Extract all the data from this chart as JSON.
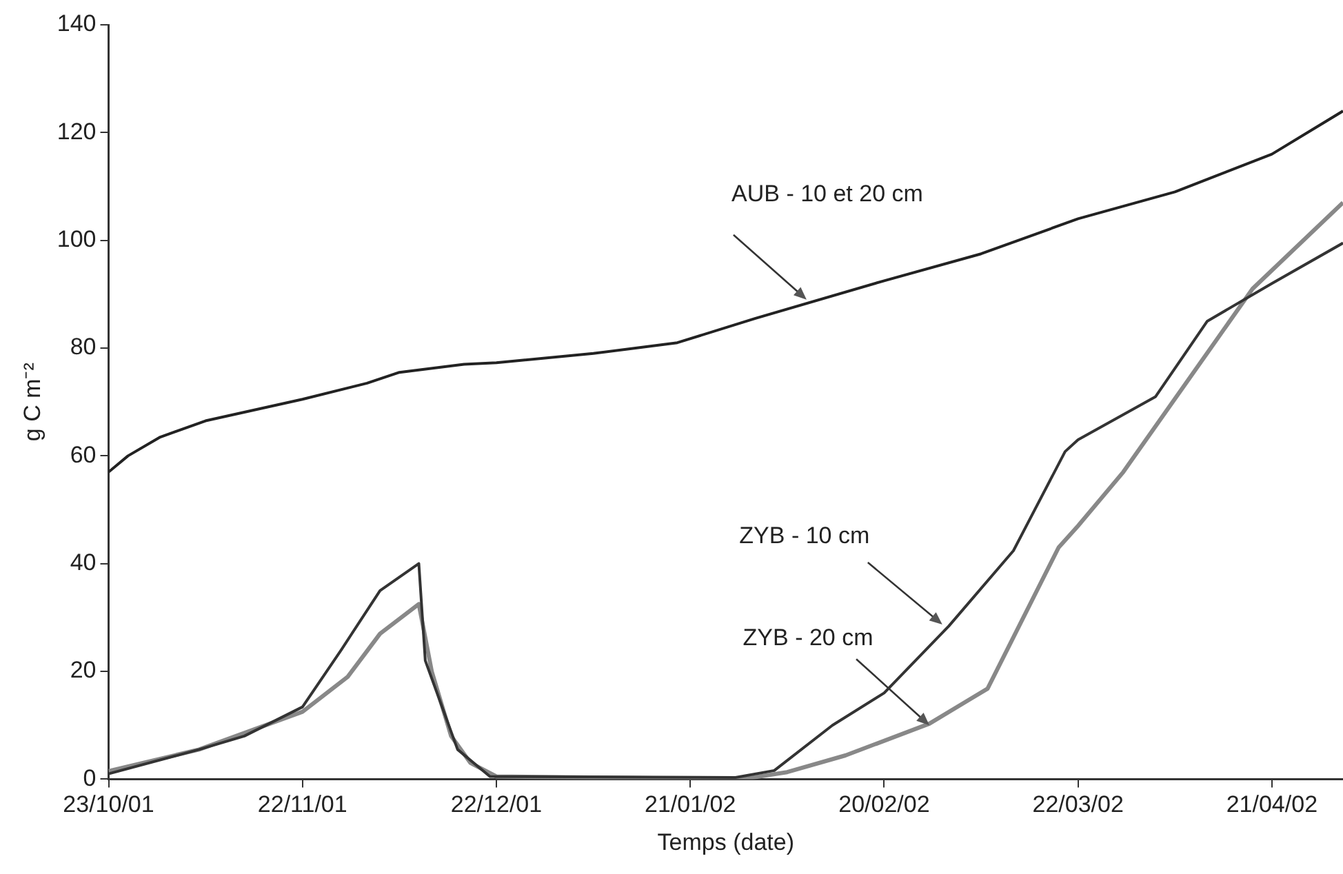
{
  "chart_data": {
    "type": "line",
    "xlabel": "Temps (date)",
    "ylabel": "g C m⁻²",
    "xlim": [
      "2001-10-23",
      "2002-05-02"
    ],
    "xticks": [
      {
        "value": "2001-10-23",
        "label": "23/10/01"
      },
      {
        "value": "2001-11-22",
        "label": "22/11/01"
      },
      {
        "value": "2001-12-22",
        "label": "22/12/01"
      },
      {
        "value": "2002-01-21",
        "label": "21/01/02"
      },
      {
        "value": "2002-02-20",
        "label": "20/02/02"
      },
      {
        "value": "2002-03-22",
        "label": "22/03/02"
      },
      {
        "value": "2002-04-21",
        "label": "21/04/02"
      }
    ],
    "ylim": [
      0,
      140
    ],
    "yticks": [
      0,
      20,
      40,
      60,
      80,
      100,
      120,
      140
    ],
    "grid": false,
    "legend": false,
    "series": [
      {
        "color": "#222222",
        "x": [
          "2001-10-23",
          "2001-10-26",
          "2001-10-31",
          "2001-11-07",
          "2001-11-22",
          "2001-12-02",
          "2001-12-07",
          "2001-12-17",
          "2001-12-22",
          "2002-01-06",
          "2002-01-19",
          "2002-01-31",
          "2002-02-20",
          "2002-03-07",
          "2002-03-22",
          "2002-04-06",
          "2002-04-21",
          "2002-05-02"
        ],
        "values": [
          57,
          60,
          63.5,
          66.5,
          70.5,
          73.5,
          75.5,
          77,
          77.3,
          79,
          81,
          85.5,
          92.5,
          97.5,
          104,
          109,
          116,
          124
        ]
      },
      {
        "color": "#333333",
        "x": [
          "2001-10-23",
          "2001-11-06",
          "2001-11-13",
          "2001-11-22",
          "2001-11-28",
          "2001-12-04",
          "2001-12-10",
          "2001-12-11",
          "2001-12-16",
          "2001-12-21",
          "2002-01-28",
          "2002-02-03",
          "2002-02-12",
          "2002-02-20",
          "2002-03-02",
          "2002-03-12",
          "2002-03-20",
          "2002-03-22",
          "2002-04-03",
          "2002-04-11",
          "2002-04-21",
          "2002-05-02"
        ],
        "values": [
          1,
          5.5,
          8,
          13.4,
          24,
          35,
          40,
          22,
          5.5,
          0.5,
          0.3,
          1.6,
          10,
          16,
          28.4,
          42.4,
          60.8,
          63,
          71,
          85,
          92,
          99.5
        ]
      },
      {
        "color": "#888888",
        "x": [
          "2001-10-23",
          "2001-11-06",
          "2001-11-22",
          "2001-11-29",
          "2001-12-04",
          "2001-12-10",
          "2001-12-12",
          "2001-12-15",
          "2001-12-18",
          "2001-12-22",
          "2002-01-29",
          "2002-02-05",
          "2002-02-14",
          "2002-02-27",
          "2002-03-08",
          "2002-03-19",
          "2002-03-22",
          "2002-03-29",
          "2002-04-18",
          "2002-05-02"
        ],
        "values": [
          1.5,
          5.5,
          12.5,
          19,
          27,
          32.5,
          20,
          8,
          3,
          0.5,
          0,
          1.3,
          4.4,
          10.3,
          16.8,
          43,
          47,
          57,
          91,
          107
        ]
      }
    ],
    "annotations": [
      {
        "text": "AUB - 10 et 20 cm",
        "x": "2002-02-08",
        "y": 89
      },
      {
        "text": "ZYB - 10 cm",
        "x": "2002-03-01",
        "y": 28.7
      },
      {
        "text": "ZYB - 20 cm",
        "x": "2002-02-27",
        "y": 10
      }
    ]
  }
}
